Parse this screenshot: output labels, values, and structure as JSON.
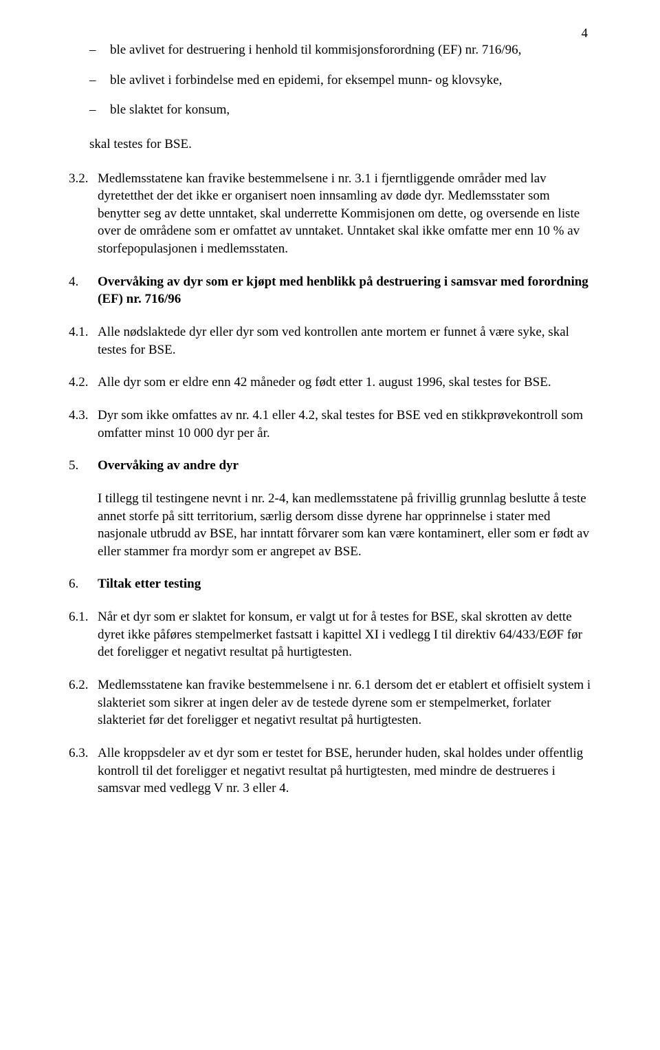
{
  "page_number": "4",
  "bullets": [
    "ble avlivet for destruering i henhold til kommisjonsforordning (EF) nr. 716/96,",
    "ble avlivet i forbindelse med en epidemi, for eksempel munn- og klovsyke,",
    "ble slaktet for konsum,"
  ],
  "after_bullets": "skal testes for BSE.",
  "s32": {
    "num": "3.2.",
    "text": "Medlemsstatene kan fravike bestemmelsene i nr. 3.1 i fjerntliggende områder med lav dyretetthet der det ikke er organisert noen innsamling av døde dyr. Medlemsstater som benytter seg av dette unntaket, skal underrette Kommisjonen om dette, og oversende en liste over de områdene som er omfattet av unntaket. Unntaket skal ikke omfatte mer enn 10 % av storfepopulasjonen i medlemsstaten."
  },
  "s4": {
    "num": "4.",
    "text": "Overvåking av dyr som er kjøpt med henblikk på destruering i samsvar med forordning (EF) nr. 716/96"
  },
  "s41": {
    "num": "4.1.",
    "text": "Alle nødslaktede dyr eller dyr som ved kontrollen ante mortem er funnet å være syke, skal testes for BSE."
  },
  "s42": {
    "num": "4.2.",
    "text": "Alle dyr som er eldre enn 42 måneder og født etter 1. august 1996, skal testes for BSE."
  },
  "s43": {
    "num": "4.3.",
    "text": "Dyr som ikke omfattes av nr. 4.1 eller 4.2, skal testes for BSE ved en stikkprøvekontroll som omfatter minst 10 000 dyr per år."
  },
  "s5": {
    "num": "5.",
    "heading": "Overvåking av andre dyr",
    "text": "I tillegg til testingene nevnt i nr. 2-4, kan medlemsstatene på frivillig grunnlag beslutte å teste annet storfe på sitt territorium, særlig dersom disse dyrene har opprinnelse i stater med nasjonale utbrudd av BSE, har inntatt fôrvarer som kan være kontaminert, eller som er født av eller stammer fra mordyr som er angrepet av BSE."
  },
  "s6": {
    "num": "6.",
    "heading": "Tiltak etter testing"
  },
  "s61": {
    "num": "6.1.",
    "text": "Når et dyr som er slaktet for konsum, er valgt ut for å testes for BSE, skal skrotten av dette dyret ikke påføres stempelmerket fastsatt i kapittel XI i vedlegg I til direktiv 64/433/EØF før det foreligger et negativt resultat på hurtigtesten."
  },
  "s62": {
    "num": "6.2.",
    "text": "Medlemsstatene kan fravike bestemmelsene i nr. 6.1 dersom det er etablert et offisielt system i slakteriet som sikrer at ingen deler av de testede dyrene som er stempelmerket, forlater slakteriet før det foreligger et negativt resultat på hurtigtesten."
  },
  "s63": {
    "num": "6.3.",
    "text": "Alle kroppsdeler av et dyr som er testet for BSE, herunder huden, skal holdes under offentlig kontroll til det foreligger et negativt resultat på hurtigtesten, med mindre de destrueres i samsvar med vedlegg V nr. 3 eller 4."
  }
}
